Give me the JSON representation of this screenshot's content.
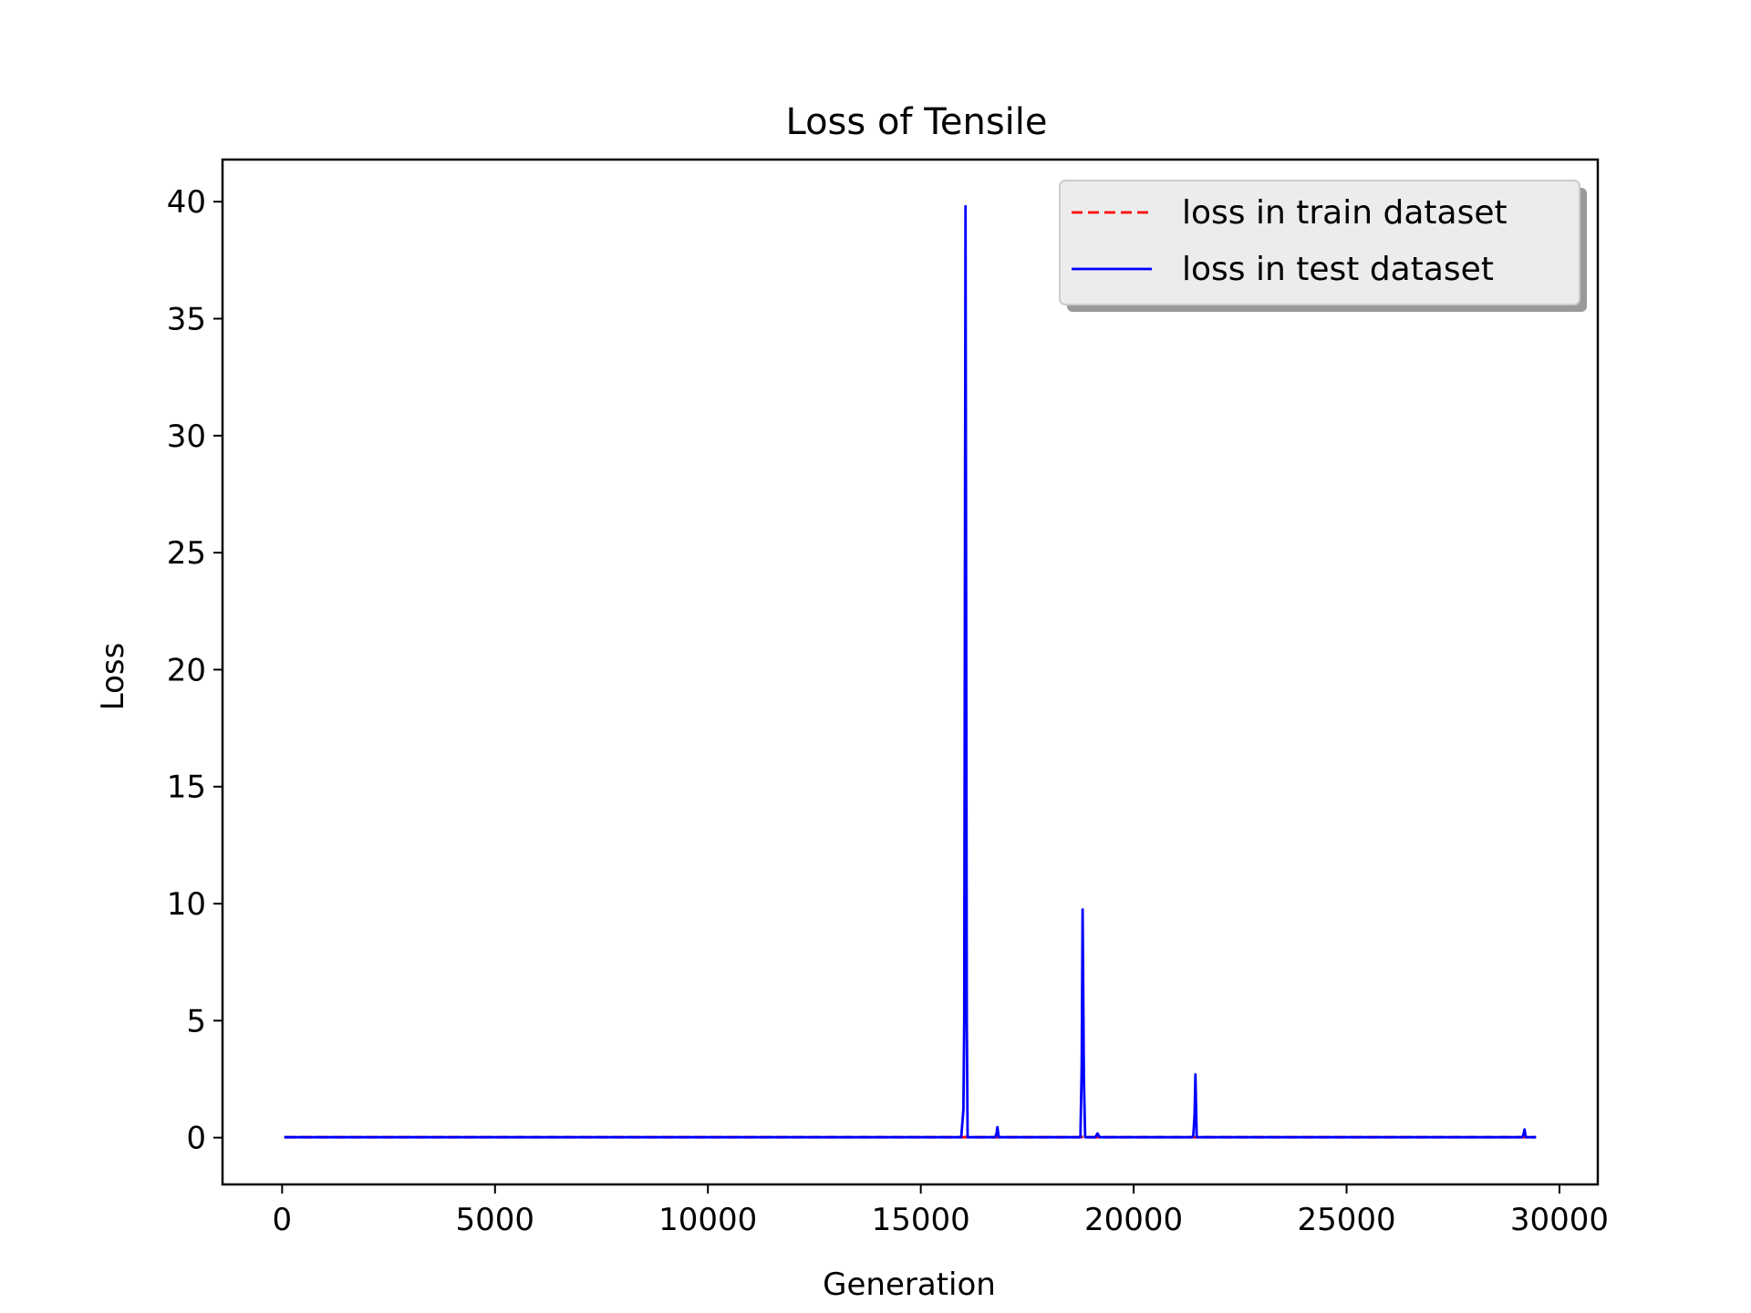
{
  "chart_data": {
    "type": "line",
    "title": "Loss of Tensile",
    "xlabel": "Generation",
    "ylabel": "Loss",
    "xlim": [
      -1400,
      30900
    ],
    "ylim": [
      -2,
      41.8
    ],
    "xticks": [
      0,
      5000,
      10000,
      15000,
      20000,
      25000,
      30000
    ],
    "yticks": [
      0,
      5,
      10,
      15,
      20,
      25,
      30,
      35,
      40
    ],
    "grid": false,
    "legend_position": "top-right",
    "series": [
      {
        "name": "loss in train dataset",
        "color": "#ff0000",
        "style": "dashed",
        "x": [
          50,
          15950,
          16020,
          16050,
          16080,
          16780,
          16800,
          16830,
          18750,
          18800,
          18830,
          18860,
          18900,
          19100,
          19150,
          19200,
          21400,
          21430,
          21450,
          21480,
          21500,
          29150,
          29180,
          29210,
          29450
        ],
        "y": [
          0.02,
          0.02,
          0.02,
          0.03,
          0.02,
          0.02,
          0.02,
          0.02,
          0.02,
          0.03,
          0.03,
          0.02,
          0.02,
          0.02,
          0.02,
          0.02,
          0.02,
          0.02,
          0.02,
          0.02,
          0.02,
          0.02,
          0.02,
          0.02,
          0.02
        ]
      },
      {
        "name": "loss in test dataset",
        "color": "#0000ff",
        "style": "solid",
        "x": [
          50,
          15950,
          16000,
          16020,
          16050,
          16080,
          16100,
          16750,
          16780,
          16800,
          16830,
          18750,
          18780,
          18800,
          18830,
          18860,
          18900,
          19100,
          19150,
          19200,
          21380,
          21400,
          21430,
          21450,
          21480,
          21500,
          29120,
          29150,
          29180,
          29210,
          29450
        ],
        "y": [
          0.02,
          0.02,
          1.2,
          5.0,
          39.8,
          5.0,
          0.02,
          0.02,
          0.2,
          0.45,
          0.02,
          0.02,
          3.0,
          9.75,
          2.5,
          0.02,
          0.02,
          0.02,
          0.18,
          0.02,
          0.02,
          0.1,
          1.0,
          2.7,
          0.02,
          0.02,
          0.02,
          0.1,
          0.35,
          0.02,
          0.02
        ]
      }
    ]
  }
}
